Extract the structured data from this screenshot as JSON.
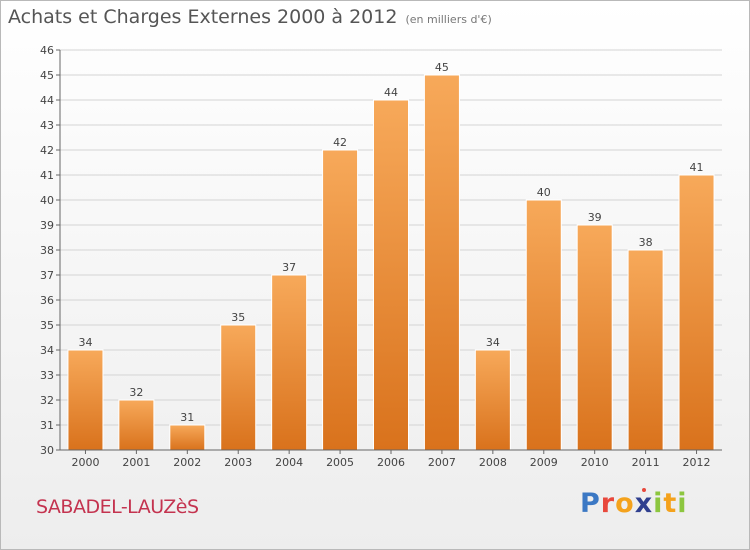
{
  "chart_data": {
    "type": "bar",
    "title": "Achats et Charges Externes 2000 à 2012",
    "subtitle": "(en milliers d'€)",
    "categories": [
      "2000",
      "2001",
      "2002",
      "2003",
      "2004",
      "2005",
      "2006",
      "2007",
      "2008",
      "2009",
      "2010",
      "2011",
      "2012"
    ],
    "values": [
      34,
      32,
      31,
      35,
      37,
      42,
      44,
      45,
      34,
      40,
      39,
      38,
      41
    ],
    "ylim": [
      30,
      46
    ],
    "yticks": [
      30,
      31,
      32,
      33,
      34,
      35,
      36,
      37,
      38,
      39,
      40,
      41,
      42,
      43,
      44,
      45,
      46
    ],
    "grid": true,
    "xlabel": "",
    "ylabel": "",
    "colors": {
      "bar_light": "#f7a95a",
      "bar_dark": "#d9721c",
      "grid": "#d4d4d4",
      "axis": "#666666"
    }
  },
  "footer": {
    "place": "SABADEL-LAUZèS",
    "logo": [
      "P",
      "r",
      "o",
      "x",
      "i",
      "t",
      "i"
    ]
  }
}
